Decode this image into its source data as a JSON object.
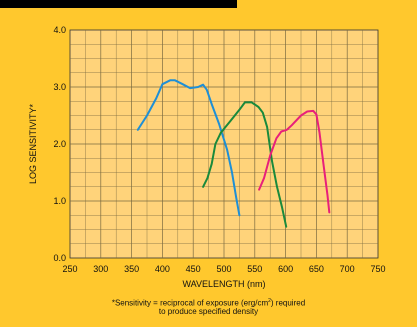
{
  "chart_data": {
    "type": "line",
    "xlabel": "WAVELENGTH (nm)",
    "ylabel": "LOG SENSITIVITY*",
    "xlim": [
      250,
      750
    ],
    "ylim": [
      0,
      4
    ],
    "x_ticks": [
      "250",
      "300",
      "350",
      "400",
      "450",
      "500",
      "550",
      "600",
      "650",
      "700",
      "750"
    ],
    "y_ticks": [
      "0.0",
      "1.0",
      "2.0",
      "3.0",
      "4.0"
    ],
    "grid": true,
    "series": [
      {
        "color": "#1e8fd6",
        "points": [
          [
            360,
            2.25
          ],
          [
            375,
            2.5
          ],
          [
            390,
            2.8
          ],
          [
            400,
            3.05
          ],
          [
            413,
            3.12
          ],
          [
            420,
            3.12
          ],
          [
            433,
            3.05
          ],
          [
            445,
            2.98
          ],
          [
            458,
            3.0
          ],
          [
            466,
            3.04
          ],
          [
            472,
            2.95
          ],
          [
            480,
            2.7
          ],
          [
            492,
            2.35
          ],
          [
            505,
            1.9
          ],
          [
            513,
            1.5
          ],
          [
            520,
            1.05
          ],
          [
            525,
            0.75
          ]
        ]
      },
      {
        "color": "#1a8a3c",
        "points": [
          [
            466,
            1.25
          ],
          [
            473,
            1.4
          ],
          [
            480,
            1.65
          ],
          [
            486,
            2.0
          ],
          [
            495,
            2.2
          ],
          [
            510,
            2.4
          ],
          [
            525,
            2.6
          ],
          [
            534,
            2.73
          ],
          [
            545,
            2.73
          ],
          [
            556,
            2.65
          ],
          [
            563,
            2.55
          ],
          [
            570,
            2.3
          ],
          [
            578,
            1.7
          ],
          [
            586,
            1.25
          ],
          [
            594,
            0.9
          ],
          [
            601,
            0.55
          ]
        ]
      },
      {
        "color": "#e8207a",
        "points": [
          [
            557,
            1.2
          ],
          [
            565,
            1.4
          ],
          [
            575,
            1.8
          ],
          [
            585,
            2.1
          ],
          [
            593,
            2.22
          ],
          [
            602,
            2.25
          ],
          [
            610,
            2.33
          ],
          [
            625,
            2.5
          ],
          [
            635,
            2.57
          ],
          [
            645,
            2.58
          ],
          [
            650,
            2.52
          ],
          [
            655,
            2.2
          ],
          [
            662,
            1.6
          ],
          [
            668,
            1.1
          ],
          [
            671,
            0.8
          ]
        ]
      }
    ]
  },
  "footnote": {
    "line1_prefix": "*Sensitivity = reciprocal of exposure (erg/cm",
    "line1_sup": "2",
    "line1_suffix": ") required",
    "line2": "to produce specified density"
  }
}
